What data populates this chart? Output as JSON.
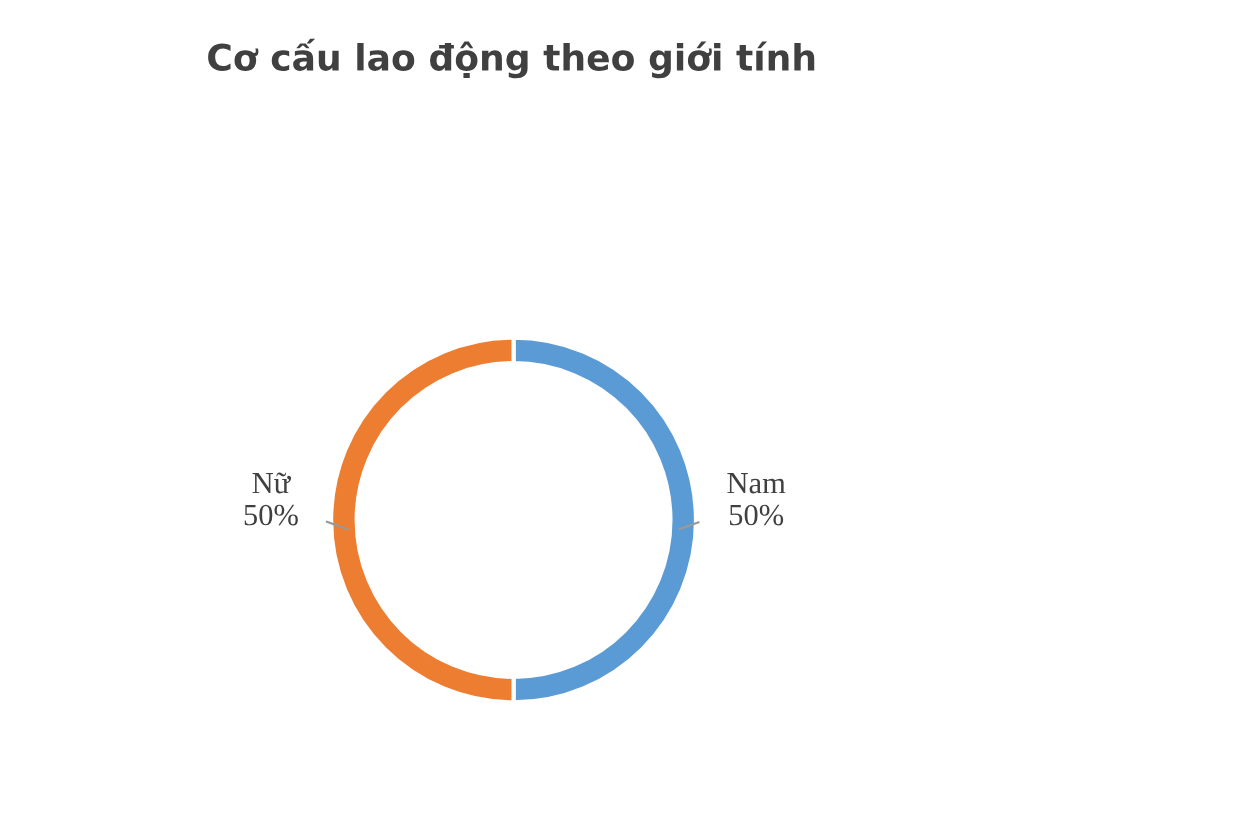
{
  "chart_data": {
    "type": "donut",
    "title": "Cơ cấu lao động theo giới tính",
    "categories": [
      "Nam",
      "Nữ"
    ],
    "values": [
      50,
      50
    ],
    "colors": [
      "#5b9bd5",
      "#ed7d31"
    ],
    "value_labels": [
      "50%",
      "50%"
    ],
    "legend": false
  }
}
